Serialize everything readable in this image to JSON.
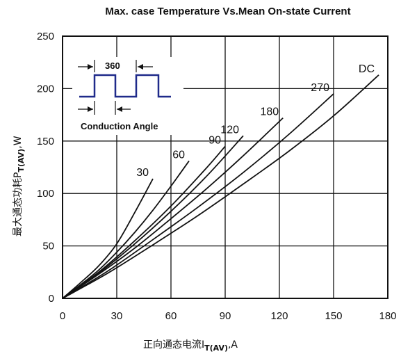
{
  "chart_data": {
    "type": "line",
    "title": "Max. case Temperature Vs.Mean On-state Current",
    "xlabel_main": "正向通态电流I",
    "xlabel_sub": "T(AV)",
    "xlabel_unit": ",A",
    "ylabel_main": "最大通态功耗P",
    "ylabel_sub": "T(AV)",
    "ylabel_unit": ",W",
    "xlim": [
      0,
      180
    ],
    "ylim": [
      0,
      250
    ],
    "xticks": [
      "0",
      "30",
      "60",
      "90",
      "120",
      "150",
      "180"
    ],
    "yticks": [
      "0",
      "50",
      "100",
      "150",
      "200",
      "250"
    ],
    "grid": true,
    "series": [
      {
        "name": "30",
        "x": [
          0,
          10,
          20,
          30,
          40,
          50
        ],
        "y": [
          0,
          15,
          31,
          52,
          82,
          114
        ]
      },
      {
        "name": "60",
        "x": [
          0,
          10,
          20,
          30,
          40,
          50,
          60,
          70
        ],
        "y": [
          0,
          13,
          27,
          44,
          63,
          84,
          107,
          131
        ]
      },
      {
        "name": "90",
        "x": [
          0,
          20,
          40,
          60,
          80,
          90
        ],
        "y": [
          0,
          25,
          55,
          88,
          125,
          145
        ]
      },
      {
        "name": "120",
        "x": [
          0,
          20,
          40,
          60,
          80,
          100
        ],
        "y": [
          0,
          24,
          52,
          83,
          117,
          155
        ]
      },
      {
        "name": "180",
        "x": [
          0,
          20,
          40,
          60,
          80,
          100,
          122
        ],
        "y": [
          0,
          23,
          48,
          76,
          105,
          136,
          172
        ]
      },
      {
        "name": "270",
        "x": [
          0,
          25,
          50,
          75,
          100,
          125,
          150
        ],
        "y": [
          0,
          26,
          56,
          87,
          120,
          156,
          195
        ]
      },
      {
        "name": "DC",
        "x": [
          0,
          25,
          50,
          75,
          100,
          125,
          150,
          175
        ],
        "y": [
          0,
          24,
          51,
          79,
          109,
          140,
          174,
          213
        ]
      }
    ],
    "inset": {
      "angle_label": "360",
      "caption": "Conduction Angle"
    }
  }
}
